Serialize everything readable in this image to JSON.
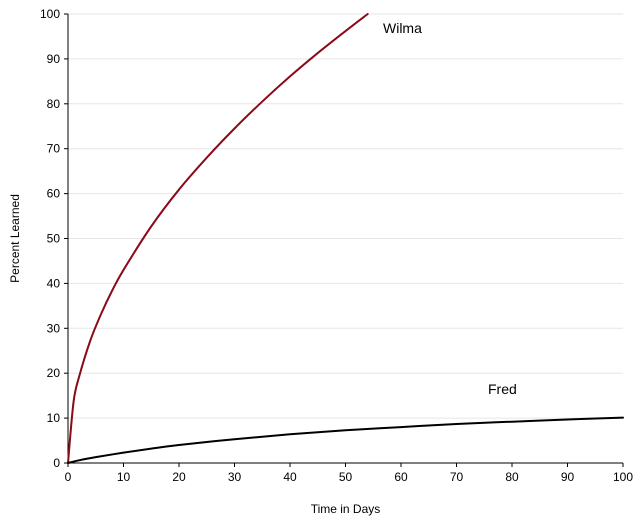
{
  "chart_data": {
    "type": "line",
    "title": "",
    "xlabel": "Time in Days",
    "ylabel": "Percent Learned",
    "xlim": [
      0,
      100
    ],
    "ylim": [
      0,
      100
    ],
    "xticks": [
      0,
      10,
      20,
      30,
      40,
      50,
      60,
      70,
      80,
      90,
      100
    ],
    "yticks": [
      0,
      10,
      20,
      30,
      40,
      50,
      60,
      70,
      80,
      90,
      100
    ],
    "grid": "horizontal",
    "series": [
      {
        "name": "Wilma",
        "color": "#8b0a1a",
        "x": [
          0,
          1,
          2,
          4,
          6,
          8,
          10,
          15,
          20,
          25,
          30,
          35,
          40,
          45,
          50,
          54
        ],
        "y": [
          0,
          13.6,
          19.2,
          27.2,
          33.3,
          38.5,
          43.0,
          52.7,
          60.9,
          68.0,
          74.5,
          80.5,
          86.1,
          91.3,
          96.2,
          100
        ]
      },
      {
        "name": "Fred",
        "color": "#000000",
        "x": [
          0,
          2,
          5,
          10,
          15,
          20,
          30,
          40,
          50,
          60,
          70,
          80,
          90,
          100
        ],
        "y": [
          0,
          0.6,
          1.3,
          2.3,
          3.2,
          4.0,
          5.3,
          6.4,
          7.3,
          8.0,
          8.7,
          9.2,
          9.7,
          10.1
        ]
      }
    ]
  }
}
